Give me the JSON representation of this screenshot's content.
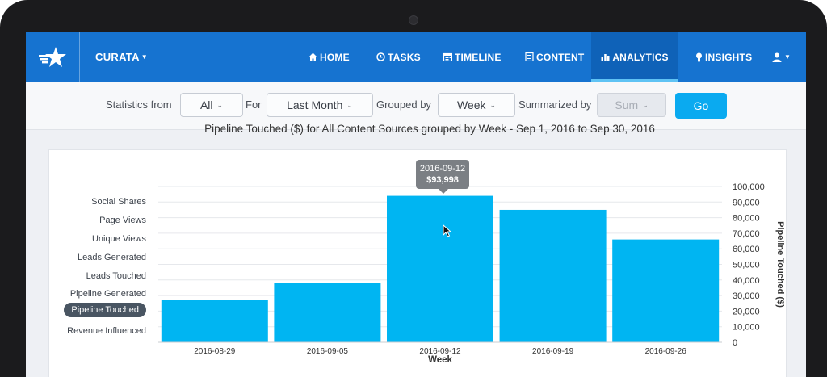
{
  "nav": {
    "brand": "CURATA",
    "items": [
      {
        "label": "HOME",
        "icon": "home-icon"
      },
      {
        "label": "TASKS",
        "icon": "clock-icon"
      },
      {
        "label": "TIMELINE",
        "icon": "calendar-icon"
      },
      {
        "label": "CONTENT",
        "icon": "document-icon"
      },
      {
        "label": "ANALYTICS",
        "icon": "bar-chart-icon",
        "active": true
      },
      {
        "label": "INSIGHTS",
        "icon": "lightbulb-icon"
      }
    ],
    "user_icon": "user-icon"
  },
  "filters": {
    "statistics_from_label": "Statistics from",
    "statistics_from_value": "All",
    "for_label": "For",
    "for_value": "Last Month",
    "grouped_by_label": "Grouped by",
    "grouped_by_value": "Week",
    "summarized_by_label": "Summarized by",
    "summarized_by_value": "Sum",
    "go_label": "Go"
  },
  "metrics": [
    "Social Shares",
    "Page Views",
    "Unique Views",
    "Leads Generated",
    "Leads Touched",
    "Pipeline Generated",
    "Pipeline Touched",
    "Revenue Influenced"
  ],
  "active_metric": "Pipeline Touched",
  "tooltip": {
    "date": "2016-09-12",
    "value": "$93,998"
  },
  "colors": {
    "nav": "#1673d0",
    "bar": "#00b5f2",
    "go": "#0aaaf0"
  },
  "chart_data": {
    "type": "bar",
    "title": "Pipeline Touched ($) for All Content Sources grouped by Week - Sep 1, 2016 to Sep 30, 2016",
    "xlabel": "Week",
    "ylabel": "Pipeline Touched ($)",
    "categories": [
      "2016-08-29",
      "2016-09-05",
      "2016-09-12",
      "2016-09-19",
      "2016-09-26"
    ],
    "values": [
      27000,
      38000,
      93998,
      85000,
      66000
    ],
    "ylim": [
      0,
      100000
    ],
    "yticks": [
      "0",
      "10,000",
      "20,000",
      "30,000",
      "40,000",
      "50,000",
      "60,000",
      "70,000",
      "80,000",
      "90,000",
      "100,000"
    ],
    "grid": true,
    "yaxis_position": "right"
  }
}
